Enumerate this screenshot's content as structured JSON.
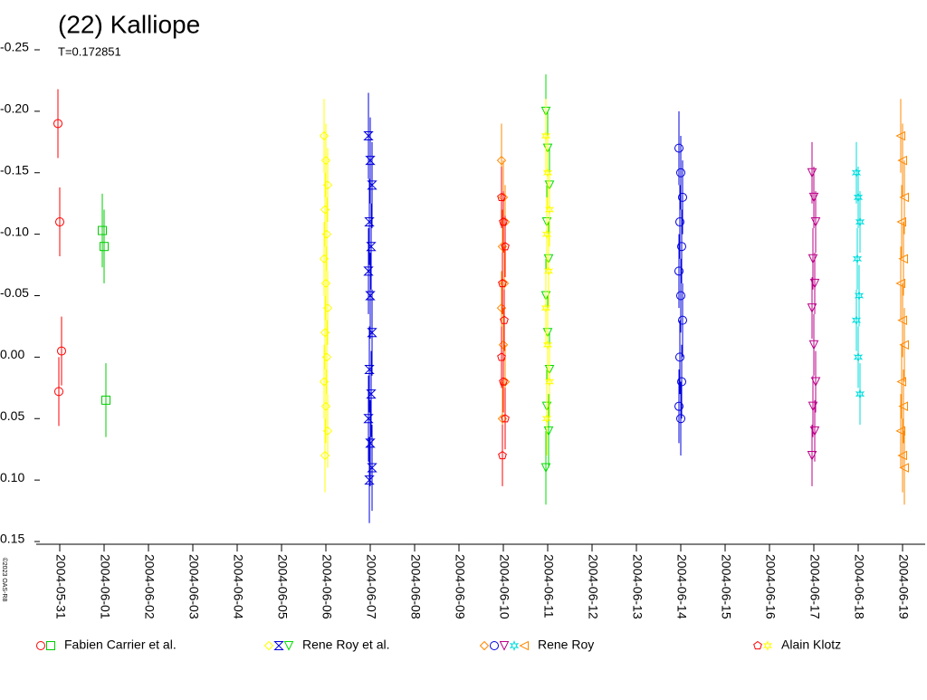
{
  "chart_data": {
    "type": "scatter",
    "title": "(22) Kalliope",
    "subtitle": "T=0.172851",
    "copyright": "©2023 OAS-R8",
    "ylim": [
      -0.25,
      0.15
    ],
    "yticks": [
      -0.25,
      {
        "value": -0.2,
        "label": "-0.20"
      },
      -0.15,
      {
        "value": -0.1,
        "label": "-0.10"
      },
      -0.05,
      {
        "value": 0,
        "label": "0.00"
      },
      0.05,
      {
        "value": 0.1,
        "label": "0.10"
      },
      0.15
    ],
    "xlim": [
      "2004-05-31",
      "2004-06-19"
    ],
    "xticks": [
      "2004-05-31",
      "2004-06-01",
      "2004-06-02",
      "2004-06-03",
      "2004-06-04",
      "2004-06-05",
      "2004-06-06",
      "2004-06-07",
      "2004-06-08",
      "2004-06-09",
      "2004-06-10",
      "2004-06-11",
      "2004-06-12",
      "2004-06-13",
      "2004-06-14",
      "2004-06-15",
      "2004-06-16",
      "2004-06-17",
      "2004-06-18",
      "2004-06-19"
    ],
    "series": [
      {
        "name": "Fabien Carrier et al.",
        "sessions": [
          {
            "color": "#ff0000",
            "marker": "circle",
            "x": "2004-05-31",
            "error": 0.028,
            "values": [
              -0.19,
              -0.11,
              -0.005,
              0.028
            ]
          },
          {
            "color": "#00cc00",
            "marker": "square",
            "x": "2004-06-01",
            "error": 0.03,
            "values": [
              -0.103,
              -0.09,
              0.035
            ]
          }
        ]
      },
      {
        "name": "Rene Roy et al.",
        "sessions": [
          {
            "color": "#ffff00",
            "marker": "diamond",
            "x": "2004-06-06",
            "error": 0.03,
            "values": [
              -0.18,
              -0.16,
              -0.14,
              -0.12,
              -0.1,
              -0.08,
              -0.06,
              -0.04,
              -0.02,
              0.0,
              0.02,
              0.04,
              0.06,
              0.08
            ]
          },
          {
            "color": "#0000dd",
            "marker": "bowtie",
            "x": "2004-06-07",
            "error": 0.035,
            "values": [
              -0.18,
              -0.16,
              -0.14,
              -0.11,
              -0.09,
              -0.07,
              -0.05,
              -0.02,
              0.01,
              0.03,
              0.05,
              0.07,
              0.09,
              0.1
            ]
          },
          {
            "color": "#00dd00",
            "marker": "triangle",
            "x": "2004-06-11",
            "error": 0.03,
            "values": [
              -0.2,
              -0.17,
              -0.14,
              -0.11,
              -0.08,
              -0.05,
              -0.02,
              0.01,
              0.04,
              0.06,
              0.09
            ]
          }
        ]
      },
      {
        "name": "Rene Roy",
        "sessions": [
          {
            "color": "#ff8800",
            "marker": "diamond",
            "x": "2004-06-10",
            "error": 0.03,
            "values": [
              -0.16,
              -0.13,
              -0.11,
              -0.09,
              -0.06,
              -0.04,
              -0.01,
              0.02,
              0.05
            ]
          },
          {
            "color": "#0000dd",
            "marker": "circle",
            "x": "2004-06-14",
            "error": 0.03,
            "values": [
              -0.17,
              -0.15,
              -0.13,
              -0.11,
              -0.09,
              -0.07,
              -0.05,
              -0.03,
              0.0,
              0.02,
              0.04,
              0.05
            ]
          },
          {
            "color": "#bb0088",
            "marker": "triangle",
            "x": "2004-06-17",
            "error": 0.025,
            "values": [
              -0.15,
              -0.13,
              -0.11,
              -0.08,
              -0.06,
              -0.04,
              -0.01,
              0.02,
              0.04,
              0.06,
              0.08
            ]
          },
          {
            "color": "#00dddd",
            "marker": "star",
            "x": "2004-06-18",
            "error": 0.025,
            "values": [
              -0.15,
              -0.13,
              -0.11,
              -0.08,
              -0.05,
              -0.03,
              0.0,
              0.03
            ]
          },
          {
            "color": "#ff8800",
            "marker": "triangle-left",
            "x": "2004-06-19",
            "error": 0.03,
            "values": [
              -0.18,
              -0.16,
              -0.13,
              -0.11,
              -0.08,
              -0.06,
              -0.03,
              -0.01,
              0.02,
              0.04,
              0.06,
              0.08,
              0.09
            ]
          }
        ]
      },
      {
        "name": "Alain Klotz",
        "sessions": [
          {
            "color": "#ff0000",
            "marker": "pentagon",
            "x": "2004-06-10",
            "error": 0.025,
            "values": [
              -0.13,
              -0.11,
              -0.09,
              -0.06,
              -0.03,
              0.0,
              0.02,
              0.05,
              0.08
            ]
          },
          {
            "color": "#ffff00",
            "marker": "star",
            "x": "2004-06-11",
            "error": 0.03,
            "values": [
              -0.18,
              -0.15,
              -0.12,
              -0.1,
              -0.07,
              -0.04,
              -0.01,
              0.02,
              0.05
            ]
          }
        ]
      }
    ]
  }
}
